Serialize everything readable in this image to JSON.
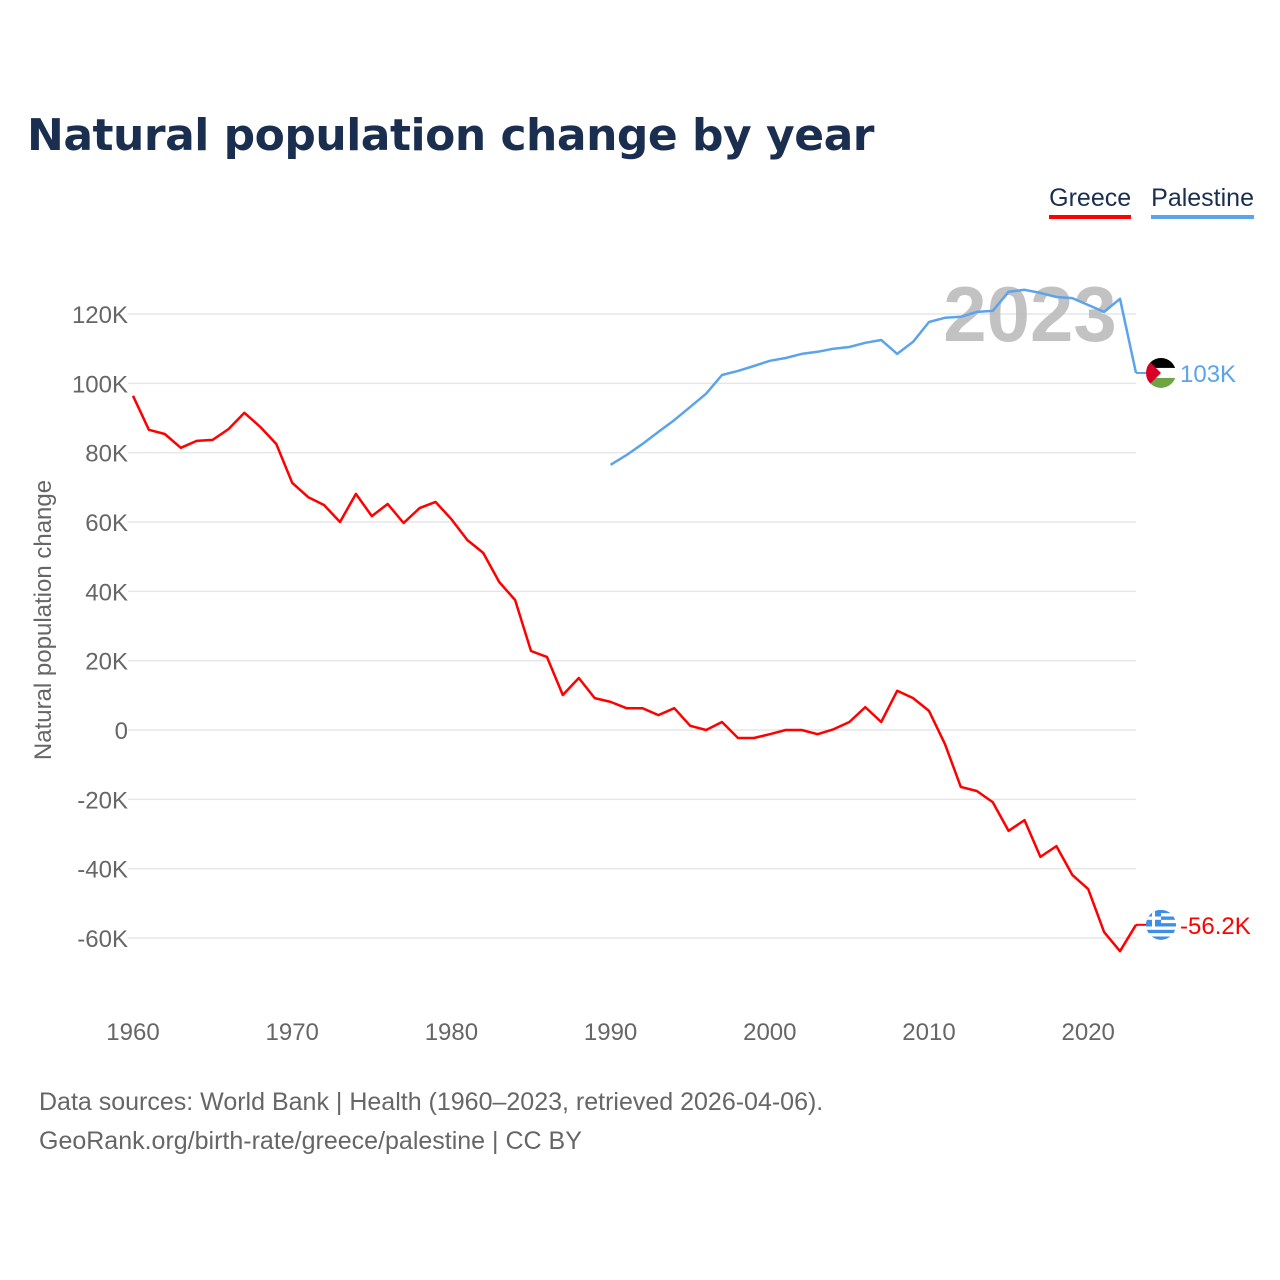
{
  "chart_data": {
    "type": "line",
    "title": "Natural population change by year",
    "ylabel": "Natural population change",
    "xlabel": "",
    "ylim": [
      -75000,
      130000
    ],
    "xlim": [
      1960,
      2023
    ],
    "yticks": [
      -60000,
      -40000,
      -20000,
      0,
      20000,
      40000,
      60000,
      80000,
      100000,
      120000
    ],
    "ytick_labels": [
      "-60K",
      "-40K",
      "-20K",
      "0",
      "20K",
      "40K",
      "60K",
      "80K",
      "100K",
      "120K"
    ],
    "xticks": [
      1960,
      1970,
      1980,
      1990,
      2000,
      2010,
      2020
    ],
    "xtick_labels": [
      "1960",
      "1970",
      "1980",
      "1990",
      "2000",
      "2010",
      "2020"
    ],
    "grid": true,
    "legend_placement": "top-right",
    "year_watermark": "2023",
    "series": [
      {
        "name": "Greece",
        "color": "#ff0000",
        "end_label": "-56.2K",
        "start_year": 1960,
        "values": [
          96400,
          86600,
          85400,
          81400,
          83400,
          83700,
          86800,
          91500,
          87400,
          82500,
          71300,
          67200,
          64900,
          60000,
          68100,
          61700,
          65200,
          59700,
          64000,
          65800,
          60800,
          54800,
          51100,
          42700,
          37500,
          22800,
          21100,
          10100,
          15000,
          9200,
          8100,
          6300,
          6300,
          4300,
          6300,
          1200,
          0,
          2300,
          -2300,
          -2300,
          -1200,
          0,
          0,
          -1200,
          200,
          2300,
          6600,
          2300,
          11300,
          9200,
          5500,
          -4000,
          -16400,
          -17600,
          -20800,
          -29100,
          -26000,
          -36600,
          -33500,
          -41800,
          -45900,
          -58300,
          -63800,
          -56200
        ]
      },
      {
        "name": "Palestine",
        "color": "#5ba3ea",
        "end_label": "103K",
        "start_year": 1990,
        "values": [
          76500,
          79300,
          82500,
          86000,
          89400,
          93200,
          97000,
          102400,
          103600,
          105000,
          106500,
          107300,
          108500,
          109100,
          110000,
          110500,
          111700,
          112500,
          108500,
          112000,
          117700,
          118900,
          119200,
          120600,
          120900,
          126400,
          127000,
          126100,
          124900,
          124600,
          122600,
          120600,
          124400,
          103000
        ]
      }
    ]
  },
  "footer": {
    "line1": "Data sources: World Bank | Health (1960–2023, retrieved 2026-04-06).",
    "line2": "GeoRank.org/birth-rate/greece/palestine | CC BY"
  }
}
